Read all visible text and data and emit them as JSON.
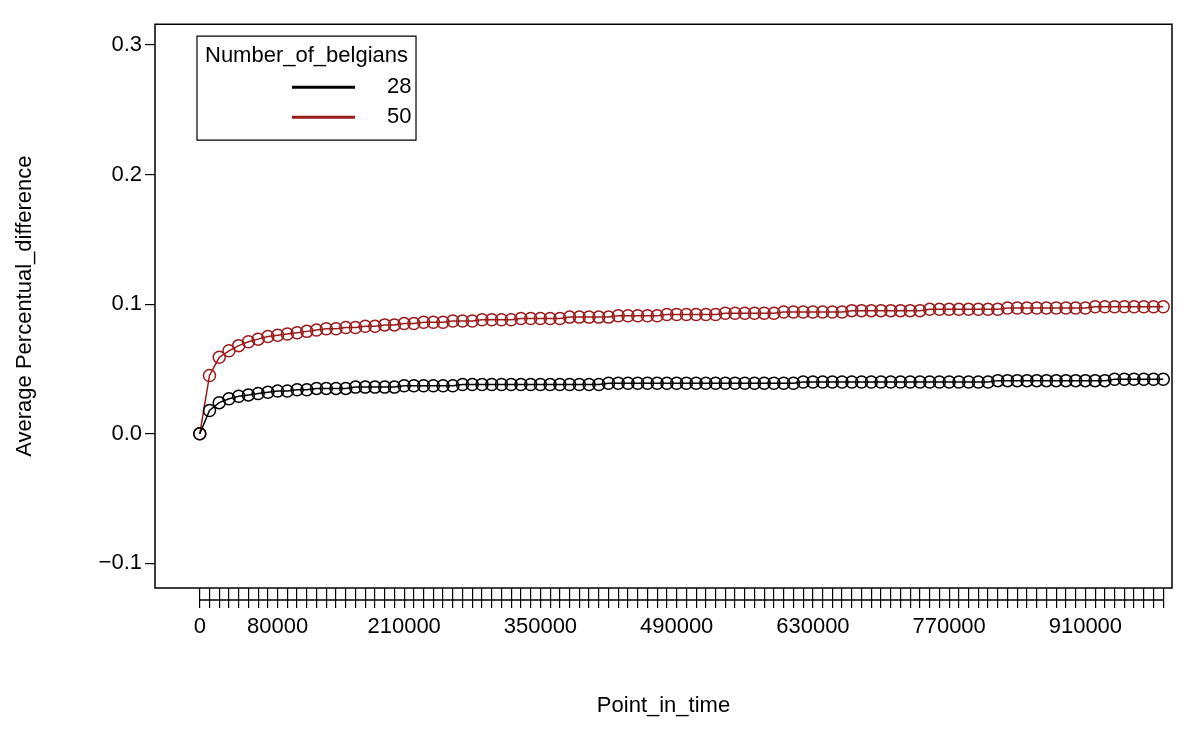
{
  "chart_data": {
    "type": "line",
    "xlabel": "Point_in_time",
    "ylabel": "Average Percentual_difference",
    "legend_title": "Number_of_belgians",
    "legend": "top left",
    "marker": "circle",
    "categories": [
      "0",
      null,
      null,
      null,
      null,
      null,
      null,
      null,
      "80000",
      null,
      null,
      null,
      null,
      null,
      null,
      null,
      null,
      null,
      null,
      null,
      null,
      "210000",
      null,
      null,
      null,
      null,
      null,
      null,
      null,
      null,
      null,
      null,
      null,
      null,
      null,
      "350000",
      null,
      null,
      null,
      null,
      null,
      null,
      null,
      null,
      null,
      null,
      null,
      null,
      null,
      "490000",
      null,
      null,
      null,
      null,
      null,
      null,
      null,
      null,
      null,
      null,
      null,
      null,
      null,
      "630000",
      null,
      null,
      null,
      null,
      null,
      null,
      null,
      null,
      null,
      null,
      null,
      null,
      null,
      "770000",
      null,
      null,
      null,
      null,
      null,
      null,
      null,
      null,
      null,
      null,
      null,
      null,
      null,
      "910000",
      null,
      null,
      null,
      null,
      null,
      null,
      null,
      null
    ],
    "ylim": [
      -0.119,
      0.316
    ],
    "yticks": [
      {
        "value": -0.1,
        "label": "−0.1"
      },
      {
        "value": 0,
        "label": "0.0"
      },
      {
        "value": 0.1,
        "label": "0.1"
      },
      {
        "value": 0.2,
        "label": "0.2"
      },
      {
        "value": 0.3,
        "label": "0.3"
      }
    ],
    "series": [
      {
        "name": "28",
        "color": "#000000",
        "values": [
          0,
          0.018,
          0.024,
          0.027,
          0.029,
          0.03,
          0.031,
          0.032,
          0.033,
          0.033,
          0.034,
          0.034,
          0.035,
          0.035,
          0.035,
          0.035,
          0.036,
          0.036,
          0.036,
          0.036,
          0.036,
          0.037,
          0.037,
          0.037,
          0.037,
          0.037,
          0.037,
          0.038,
          0.038,
          0.038,
          0.038,
          0.038,
          0.038,
          0.038,
          0.038,
          0.038,
          0.038,
          0.038,
          0.038,
          0.038,
          0.038,
          0.038,
          0.039,
          0.039,
          0.039,
          0.039,
          0.039,
          0.039,
          0.039,
          0.039,
          0.039,
          0.039,
          0.039,
          0.039,
          0.039,
          0.039,
          0.039,
          0.039,
          0.039,
          0.039,
          0.039,
          0.039,
          0.04,
          0.04,
          0.04,
          0.04,
          0.04,
          0.04,
          0.04,
          0.04,
          0.04,
          0.04,
          0.04,
          0.04,
          0.04,
          0.04,
          0.04,
          0.04,
          0.04,
          0.04,
          0.04,
          0.04,
          0.041,
          0.041,
          0.041,
          0.041,
          0.041,
          0.041,
          0.041,
          0.041,
          0.041,
          0.041,
          0.041,
          0.041,
          0.042,
          0.042,
          0.042,
          0.042,
          0.042,
          0.042
        ]
      },
      {
        "name": "50",
        "color": "#9b1b1b",
        "values": [
          0,
          0.045,
          0.059,
          0.064,
          0.068,
          0.071,
          0.073,
          0.075,
          0.076,
          0.077,
          0.078,
          0.079,
          0.08,
          0.081,
          0.081,
          0.082,
          0.082,
          0.083,
          0.083,
          0.084,
          0.084,
          0.085,
          0.085,
          0.086,
          0.086,
          0.086,
          0.087,
          0.087,
          0.087,
          0.088,
          0.088,
          0.088,
          0.088,
          0.089,
          0.089,
          0.089,
          0.089,
          0.089,
          0.09,
          0.09,
          0.09,
          0.09,
          0.09,
          0.091,
          0.091,
          0.091,
          0.091,
          0.091,
          0.092,
          0.092,
          0.092,
          0.092,
          0.092,
          0.092,
          0.093,
          0.093,
          0.093,
          0.093,
          0.093,
          0.093,
          0.094,
          0.094,
          0.094,
          0.094,
          0.094,
          0.094,
          0.094,
          0.095,
          0.095,
          0.095,
          0.095,
          0.095,
          0.095,
          0.095,
          0.095,
          0.096,
          0.096,
          0.096,
          0.096,
          0.096,
          0.096,
          0.096,
          0.096,
          0.097,
          0.097,
          0.097,
          0.097,
          0.097,
          0.097,
          0.097,
          0.097,
          0.097,
          0.098,
          0.098,
          0.098,
          0.098,
          0.098,
          0.098,
          0.098,
          0.098
        ]
      }
    ]
  }
}
